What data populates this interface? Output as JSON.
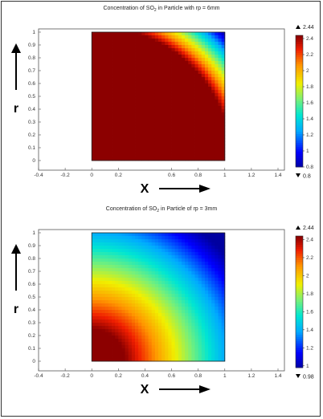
{
  "chart_data": [
    {
      "type": "heatmap",
      "title_prefix": "Concentration of SO",
      "title_sub": "2",
      "title_suffix": " in Particle with ",
      "title_var": "rp = 6mm",
      "xlabel": "X",
      "ylabel": "r",
      "xlim": [
        -0.4,
        1.4
      ],
      "ylim": [
        0,
        1
      ],
      "xticks": [
        "-0.4",
        "-0.2",
        "0",
        "0.2",
        "0.6",
        "0.8",
        "1",
        "1.2",
        "1.4"
      ],
      "xtick_values": [
        -0.4,
        -0.2,
        0,
        0.2,
        0.6,
        0.8,
        1,
        1.2,
        1.4
      ],
      "yticks": [
        "0",
        "0.1",
        "0.2",
        "0.3",
        "0.4",
        "0.5",
        "0.6",
        "0.7",
        "0.8",
        "0.9",
        "1"
      ],
      "domain": {
        "x": [
          0,
          1
        ],
        "y": [
          0,
          1
        ]
      },
      "field": "shrinking-core: concentration high near origin, decreasing toward corner (1,1)",
      "colorbar": {
        "max_label": "2.44",
        "min_label": "0.8",
        "max_value": 2.44,
        "min_value": 0.8,
        "tick_labels": [
          "2.4",
          "2.2",
          "2",
          "1.8",
          "1.6",
          "1.4",
          "1.2",
          "1",
          "0.8"
        ],
        "tick_values": [
          2.4,
          2.2,
          2.0,
          1.8,
          1.6,
          1.4,
          1.2,
          1.0,
          0.8
        ],
        "colormap": "rainbow"
      },
      "model": {
        "saturated_radius": 1.05,
        "min_radius": 1.414,
        "dark_red_level": 2.44
      }
    },
    {
      "type": "heatmap",
      "title_prefix": "Concentration of SO",
      "title_sub": "2",
      "title_suffix": " in Particle of ",
      "title_var": "rp = 3mm",
      "xlabel": "X",
      "ylabel": "r",
      "xlim": [
        -0.4,
        1.4
      ],
      "ylim": [
        0,
        1
      ],
      "xticks": [
        "-0.4",
        "-0.2",
        "0",
        "0.2",
        "0.4",
        "0.6",
        "0.8",
        "1",
        "1.2",
        "1.4"
      ],
      "xtick_values": [
        -0.4,
        -0.2,
        0,
        0.2,
        0.4,
        0.6,
        0.8,
        1,
        1.2,
        1.4
      ],
      "yticks": [
        "0",
        "0.1",
        "0.2",
        "0.3",
        "0.4",
        "0.5",
        "0.6",
        "0.7",
        "0.8",
        "0.9",
        "1"
      ],
      "domain": {
        "x": [
          0,
          1
        ],
        "y": [
          0,
          1
        ]
      },
      "field": "concentration decreasing with distance from origin; dark red core near x=0",
      "colorbar": {
        "max_label": "2.44",
        "min_label": "0.98",
        "max_value": 2.44,
        "min_value": 0.98,
        "tick_labels": [
          "2.4",
          "2.2",
          "2",
          "1.8",
          "1.6",
          "1.4",
          "1.2",
          "1"
        ],
        "tick_values": [
          2.4,
          2.2,
          2.0,
          1.8,
          1.6,
          1.4,
          1.2,
          1.0
        ],
        "colormap": "rainbow"
      },
      "model": {
        "saturated_radius": 0.25,
        "min_radius": 1.3,
        "dark_red_level": 2.44
      }
    }
  ]
}
